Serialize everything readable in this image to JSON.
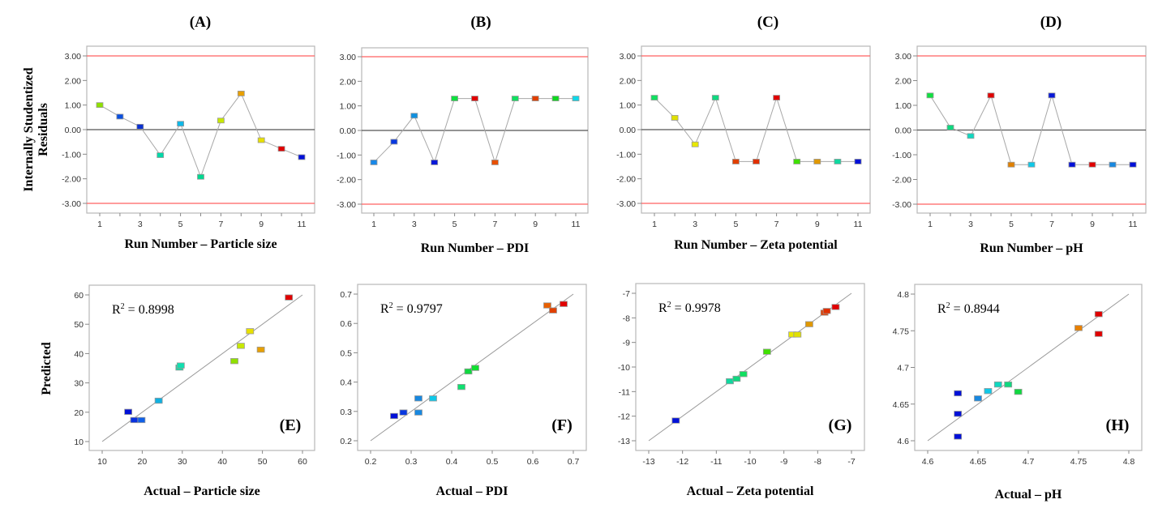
{
  "figure": {
    "residual_ylabel_line1": "Internally Studentized",
    "residual_ylabel_line2": "Residuals",
    "predicted_ylabel": "Predicted"
  },
  "chart_data": [
    {
      "id": "A",
      "type": "line",
      "title": "(A)",
      "xlabel": "Run Number – Particle size",
      "ylabel": "Internally Studentized Residuals",
      "x": [
        1,
        2,
        3,
        4,
        5,
        6,
        7,
        8,
        9,
        10,
        11
      ],
      "values": [
        1.0,
        0.53,
        0.12,
        -1.04,
        0.24,
        -1.92,
        0.37,
        1.47,
        -0.43,
        -0.78,
        -1.12
      ],
      "colors": [
        "#8ee000",
        "#0a50e0",
        "#0a30d0",
        "#00d8a8",
        "#10b8e8",
        "#00d890",
        "#c8e800",
        "#e8a000",
        "#e8e000",
        "#e00000",
        "#0010d8"
      ],
      "xticks": [
        "1",
        "3",
        "5",
        "7",
        "9",
        "11"
      ],
      "xlim": [
        1,
        11
      ],
      "yticks": [
        "3.00",
        "2.00",
        "1.00",
        "0.00",
        "-1.00",
        "-2.00",
        "-3.00"
      ],
      "ylim": [
        -3,
        3
      ],
      "limit_lines": [
        3,
        -3
      ],
      "limit_color": "#ff6060",
      "zero_line": 0
    },
    {
      "id": "B",
      "type": "line",
      "title": "(B)",
      "xlabel": "Run Number – PDI",
      "ylabel": "",
      "x": [
        1,
        2,
        3,
        4,
        5,
        6,
        7,
        8,
        9,
        10,
        11
      ],
      "values": [
        -1.3,
        -0.46,
        0.6,
        -1.3,
        1.3,
        1.3,
        -1.3,
        1.3,
        1.3,
        1.3,
        1.3
      ],
      "colors": [
        "#1888e8",
        "#0838e0",
        "#1090e0",
        "#0818d8",
        "#10e040",
        "#e00000",
        "#e85000",
        "#10e060",
        "#e04000",
        "#10d820",
        "#10d8e8"
      ],
      "xticks": [
        "1",
        "3",
        "5",
        "7",
        "9",
        "11"
      ],
      "xlim": [
        1,
        11
      ],
      "yticks": [
        "3.00",
        "2.00",
        "1.00",
        "0.00",
        "-1.00",
        "-2.00",
        "-3.00"
      ],
      "ylim": [
        -3,
        3
      ],
      "limit_lines": [
        3,
        -3
      ],
      "limit_color": "#ff6060",
      "zero_line": 0
    },
    {
      "id": "C",
      "type": "line",
      "title": "(C)",
      "xlabel": "Run Number – Zeta potential",
      "ylabel": "",
      "x": [
        1,
        2,
        3,
        4,
        5,
        6,
        7,
        8,
        9,
        10,
        11
      ],
      "values": [
        1.3,
        0.48,
        -0.6,
        1.3,
        -1.3,
        -1.3,
        1.3,
        -1.3,
        -1.3,
        -1.3,
        -1.3
      ],
      "colors": [
        "#10e060",
        "#e0e000",
        "#e8e800",
        "#10d880",
        "#e04000",
        "#e03000",
        "#e00000",
        "#40e000",
        "#e09800",
        "#10d8a0",
        "#0010d8"
      ],
      "xticks": [
        "1",
        "3",
        "5",
        "7",
        "9",
        "11"
      ],
      "xlim": [
        1,
        11
      ],
      "yticks": [
        "3.00",
        "2.00",
        "1.00",
        "0.00",
        "-1.00",
        "-2.00",
        "-3.00"
      ],
      "ylim": [
        -3,
        3
      ],
      "limit_lines": [
        3,
        -3
      ],
      "limit_color": "#ff6060",
      "zero_line": 0
    },
    {
      "id": "D",
      "type": "line",
      "title": "(D)",
      "xlabel": "Run Number – pH",
      "ylabel": "",
      "x": [
        1,
        2,
        3,
        4,
        5,
        6,
        7,
        8,
        9,
        10,
        11
      ],
      "values": [
        1.4,
        0.1,
        -0.24,
        1.4,
        -1.4,
        -1.4,
        1.4,
        -1.4,
        -1.4,
        -1.4,
        -1.4
      ],
      "colors": [
        "#10e040",
        "#10d880",
        "#10d8c0",
        "#e00000",
        "#e08000",
        "#10c8e8",
        "#0818d8",
        "#0010d8",
        "#e00000",
        "#1888e0",
        "#0010d8"
      ],
      "xticks": [
        "1",
        "3",
        "5",
        "7",
        "9",
        "11"
      ],
      "xlim": [
        1,
        11
      ],
      "yticks": [
        "3.00",
        "2.00",
        "1.00",
        "0.00",
        "-1.00",
        "-2.00",
        "-3.00"
      ],
      "ylim": [
        -3,
        3
      ],
      "limit_lines": [
        3,
        -3
      ],
      "limit_color": "#ff6060",
      "zero_line": 0
    },
    {
      "id": "E",
      "type": "scatter",
      "corner_label": "(E)",
      "r2_label": "R",
      "r2_sup": "2",
      "r2_value": " = 0.8998",
      "xlabel": "Actual – Particle size",
      "ylabel": "Predicted",
      "points": [
        {
          "x": 16.5,
          "y": 20.2,
          "color": "#0010d8"
        },
        {
          "x": 18.0,
          "y": 17.4,
          "color": "#0830e0"
        },
        {
          "x": 19.8,
          "y": 17.4,
          "color": "#1060e8"
        },
        {
          "x": 24.1,
          "y": 24.0,
          "color": "#10b0e0"
        },
        {
          "x": 29.3,
          "y": 35.3,
          "color": "#10d8a0"
        },
        {
          "x": 29.6,
          "y": 36.0,
          "color": "#10e0b0"
        },
        {
          "x": 43.0,
          "y": 37.5,
          "color": "#90e000"
        },
        {
          "x": 44.6,
          "y": 42.7,
          "color": "#c8e800"
        },
        {
          "x": 46.9,
          "y": 47.7,
          "color": "#e8e000"
        },
        {
          "x": 49.6,
          "y": 41.4,
          "color": "#e8a000"
        },
        {
          "x": 56.6,
          "y": 59.2,
          "color": "#e00000"
        }
      ],
      "fit_line": [
        [
          10,
          10
        ],
        [
          60,
          60
        ]
      ],
      "xticks": [
        "10",
        "20",
        "30",
        "40",
        "50",
        "60"
      ],
      "yticks": [
        "60",
        "50",
        "40",
        "30",
        "20",
        "10"
      ],
      "xlim": [
        10,
        60
      ],
      "ylim": [
        10,
        60
      ]
    },
    {
      "id": "F",
      "type": "scatter",
      "corner_label": "(F)",
      "r2_label": "R",
      "r2_sup": "2",
      "r2_value": " = 0.9797",
      "xlabel": "Actual – PDI",
      "ylabel": "",
      "points": [
        {
          "x": 0.258,
          "y": 0.285,
          "color": "#0010d8"
        },
        {
          "x": 0.281,
          "y": 0.297,
          "color": "#0838e0"
        },
        {
          "x": 0.318,
          "y": 0.345,
          "color": "#1888e0"
        },
        {
          "x": 0.318,
          "y": 0.297,
          "color": "#1888e0"
        },
        {
          "x": 0.354,
          "y": 0.345,
          "color": "#10c8e8"
        },
        {
          "x": 0.424,
          "y": 0.384,
          "color": "#10e070"
        },
        {
          "x": 0.441,
          "y": 0.437,
          "color": "#10d840"
        },
        {
          "x": 0.458,
          "y": 0.449,
          "color": "#10e030"
        },
        {
          "x": 0.636,
          "y": 0.662,
          "color": "#e86000"
        },
        {
          "x": 0.65,
          "y": 0.645,
          "color": "#e04000"
        },
        {
          "x": 0.676,
          "y": 0.667,
          "color": "#e00000"
        }
      ],
      "fit_line": [
        [
          0.2,
          0.2
        ],
        [
          0.7,
          0.7
        ]
      ],
      "xticks": [
        "0.2",
        "0.3",
        "0.4",
        "0.5",
        "0.6",
        "0.7"
      ],
      "yticks": [
        "0.7",
        "0.6",
        "0.5",
        "0.4",
        "0.3",
        "0.2"
      ],
      "xlim": [
        0.2,
        0.7
      ],
      "ylim": [
        0.2,
        0.7
      ]
    },
    {
      "id": "G",
      "type": "scatter",
      "corner_label": "(G)",
      "r2_label": "R",
      "r2_sup": "2",
      "r2_value": " = 0.9978",
      "xlabel": "Actual – Zeta potential",
      "ylabel": "",
      "points": [
        {
          "x": -12.2,
          "y": -12.17,
          "color": "#0010d8"
        },
        {
          "x": -10.6,
          "y": -10.57,
          "color": "#10d8a0"
        },
        {
          "x": -10.4,
          "y": -10.47,
          "color": "#10d880"
        },
        {
          "x": -10.2,
          "y": -10.28,
          "color": "#10e060"
        },
        {
          "x": -9.5,
          "y": -9.37,
          "color": "#40e000"
        },
        {
          "x": -8.75,
          "y": -8.67,
          "color": "#e8e800"
        },
        {
          "x": -8.6,
          "y": -8.67,
          "color": "#e0e000"
        },
        {
          "x": -8.25,
          "y": -8.25,
          "color": "#e09800"
        },
        {
          "x": -7.8,
          "y": -7.78,
          "color": "#e04000"
        },
        {
          "x": -7.73,
          "y": -7.71,
          "color": "#e03000"
        },
        {
          "x": -7.47,
          "y": -7.55,
          "color": "#e00000"
        }
      ],
      "fit_line": [
        [
          -13,
          -13
        ],
        [
          -7,
          -7
        ]
      ],
      "xticks": [
        "-13",
        "-12",
        "-11",
        "-10",
        "-9",
        "-8",
        "-7"
      ],
      "yticks": [
        "-7",
        "-8",
        "-9",
        "-10",
        "-11",
        "-12",
        "-13"
      ],
      "xlim": [
        -13,
        -7
      ],
      "ylim": [
        -13,
        -7
      ]
    },
    {
      "id": "H",
      "type": "scatter",
      "corner_label": "(H)",
      "r2_label": "R",
      "r2_sup": "2",
      "r2_value": " = 0.8944",
      "xlabel": "Actual – pH",
      "ylabel": "",
      "points": [
        {
          "x": 4.63,
          "y": 4.665,
          "color": "#0010d8"
        },
        {
          "x": 4.63,
          "y": 4.637,
          "color": "#0010d8"
        },
        {
          "x": 4.63,
          "y": 4.606,
          "color": "#0010d8"
        },
        {
          "x": 4.65,
          "y": 4.658,
          "color": "#1888e0"
        },
        {
          "x": 4.66,
          "y": 4.668,
          "color": "#10c8e8"
        },
        {
          "x": 4.67,
          "y": 4.677,
          "color": "#10d8c0"
        },
        {
          "x": 4.68,
          "y": 4.677,
          "color": "#10d880"
        },
        {
          "x": 4.69,
          "y": 4.667,
          "color": "#10d840"
        },
        {
          "x": 4.75,
          "y": 4.754,
          "color": "#e88000"
        },
        {
          "x": 4.77,
          "y": 4.773,
          "color": "#e00000"
        },
        {
          "x": 4.77,
          "y": 4.746,
          "color": "#e00000"
        }
      ],
      "fit_line": [
        [
          4.6,
          4.6
        ],
        [
          4.8,
          4.8
        ]
      ],
      "xticks": [
        "4.6",
        "4.65",
        "4.7",
        "4.75",
        "4.8"
      ],
      "yticks": [
        "4.8",
        "4.75",
        "4.7",
        "4.65",
        "4.6"
      ],
      "xlim": [
        4.6,
        4.8
      ],
      "ylim": [
        4.6,
        4.8
      ]
    }
  ]
}
